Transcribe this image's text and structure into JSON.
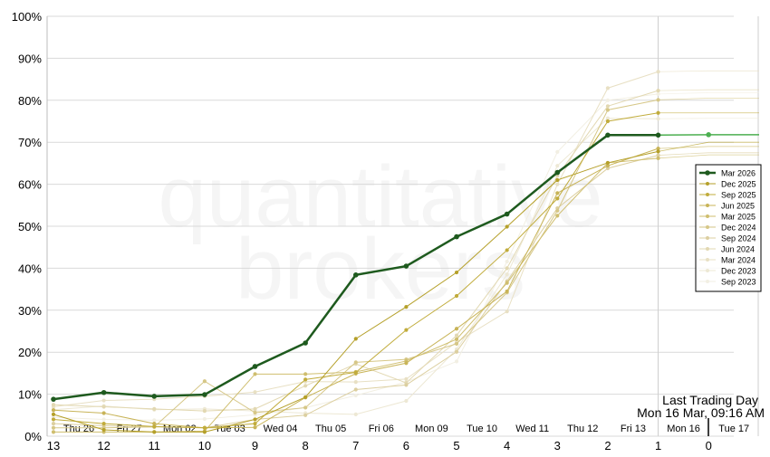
{
  "watermark": [
    "quantitative",
    "brokers"
  ],
  "annotation": {
    "title": "Last Trading Day",
    "datetime": "Mon 16 Mar, 09:16 AM"
  },
  "chart_data": {
    "type": "line",
    "ylim": [
      0,
      100
    ],
    "yticks": [
      "0%",
      "10%",
      "20%",
      "30%",
      "40%",
      "50%",
      "60%",
      "70%",
      "80%",
      "90%",
      "100%"
    ],
    "x": [
      13,
      12,
      11,
      10,
      9,
      8,
      7,
      6,
      5,
      4,
      3,
      2,
      1,
      0
    ],
    "x_labels": [
      "13",
      "12",
      "11",
      "10",
      "9",
      "8",
      "7",
      "6",
      "5",
      "4",
      "3",
      "2",
      "1",
      "0"
    ],
    "date_labels": [
      "Thu 26",
      "Fri 27",
      "Mon 02",
      "Tue 03",
      "Wed 04",
      "Thu 05",
      "Fri 06",
      "Mon 09",
      "Tue 10",
      "Wed 11",
      "Thu 12",
      "Fri 13",
      "Mon 16",
      "Tue 17"
    ],
    "grid": true,
    "legend_position": "right",
    "series": [
      {
        "name": "Mar 2026",
        "color": "#1e5a1e",
        "primary": true,
        "values": [
          8.8,
          10.4,
          9.5,
          9.9,
          16.6,
          22.2,
          38.4,
          40.5,
          47.5,
          52.9,
          62.8,
          71.7,
          71.7,
          71.8
        ],
        "extension_color": "#4caf50"
      },
      {
        "name": "Dec 2025",
        "color": "#b5a02a",
        "values": [
          5.2,
          1.5,
          1.0,
          1.0,
          4.0,
          9.3,
          23.2,
          30.8,
          39.0,
          49.9,
          61.0,
          65.1,
          67.8,
          70.0
        ]
      },
      {
        "name": "Sep 2025",
        "color": "#c1ac3c",
        "values": [
          4.0,
          3.0,
          2.3,
          2.0,
          3.0,
          13.5,
          15.2,
          25.3,
          33.4,
          44.3,
          56.6,
          75.0,
          77.0,
          77.0
        ]
      },
      {
        "name": "Jun 2025",
        "color": "#c8b458",
        "values": [
          6.2,
          5.5,
          3.0,
          2.0,
          2.1,
          9.2,
          14.9,
          17.4,
          25.6,
          34.5,
          57.9,
          64.4,
          68.5,
          69.0
        ]
      },
      {
        "name": "Mar 2025",
        "color": "#cfbe6e",
        "values": [
          1.0,
          1.0,
          1.0,
          1.2,
          14.8,
          14.8,
          15.3,
          17.9,
          23.1,
          36.5,
          52.5,
          65.1,
          66.2,
          67.0
        ]
      },
      {
        "name": "Dec 2024",
        "color": "#d6c787",
        "values": [
          2.0,
          2.0,
          2.2,
          13.1,
          5.6,
          6.8,
          17.6,
          18.3,
          22.0,
          34.2,
          53.7,
          77.7,
          80.1,
          80.5
        ]
      },
      {
        "name": "Sep 2024",
        "color": "#dccfa0",
        "values": [
          3.0,
          2.5,
          2.2,
          2.0,
          4.0,
          5.0,
          11.1,
          12.2,
          20.1,
          36.9,
          54.3,
          63.8,
          66.9,
          67.5
        ]
      },
      {
        "name": "Jun 2024",
        "color": "#e2d8b2",
        "values": [
          7.5,
          7.0,
          6.5,
          6.0,
          6.5,
          12.0,
          17.2,
          12.7,
          24.0,
          40.0,
          62.0,
          78.6,
          82.3,
          82.5
        ]
      },
      {
        "name": "Mar 2024",
        "color": "#e8e0c4",
        "values": [
          7.0,
          8.5,
          8.8,
          9.5,
          10.5,
          13.0,
          12.9,
          13.6,
          22.4,
          29.7,
          60.0,
          82.9,
          86.8,
          87.0
        ]
      },
      {
        "name": "Dec 2023",
        "color": "#ede8d4",
        "values": [
          6.3,
          7.2,
          6.3,
          6.5,
          6.0,
          5.5,
          5.2,
          8.4,
          20.7,
          38.5,
          64.4,
          75.7,
          75.6,
          75.7
        ]
      },
      {
        "name": "Sep 2023",
        "color": "#f2efe3",
        "values": [
          4.5,
          4.0,
          3.8,
          4.1,
          5.1,
          6.8,
          9.7,
          12.9,
          17.8,
          41.6,
          67.7,
          80.0,
          81.5,
          81.8
        ]
      }
    ]
  }
}
